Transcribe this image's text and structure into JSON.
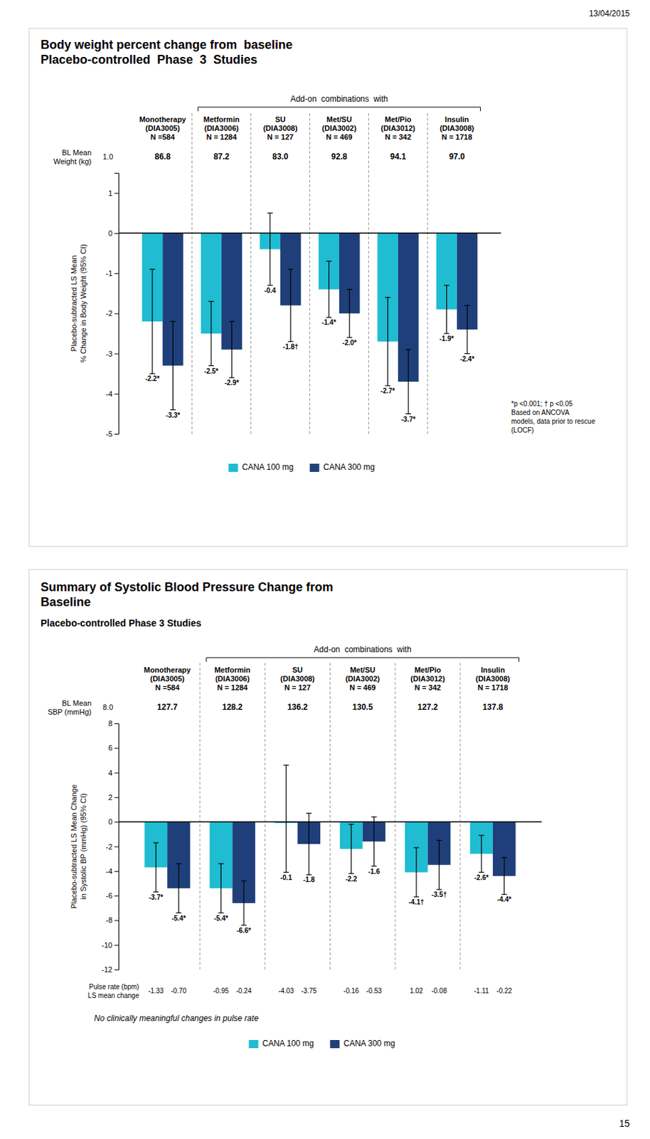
{
  "annotations": [
    "13/04/2015",
    "15"
  ],
  "chart_data": [
    {
      "type": "bar",
      "title": "Body weight percent change from  baseline\nPlacebo-controlled  Phase  3  Studies",
      "ylabel": "Placebo-subtracted LS Mean\n% Change in Body Weight (95% CI)",
      "categories": [
        "Monotherapy\n(DIA3005)\nN =584",
        "Metformin\n(DIA3006)\nN = 1284",
        "SU\n(DIA3008)\nN = 127",
        "Met/SU\n(DIA3002)\nN = 469",
        "Met/Pio\n(DIA3012)\nN = 342",
        "Insulin\n(DIA3008)\nN = 1718"
      ],
      "baseline_label": "BL Mean\nWeight (kg)",
      "baseline_values": [
        "86.8",
        "87.2",
        "83.0",
        "92.8",
        "94.1",
        "97.0"
      ],
      "annotations": [
        "Add-on  combinations  with",
        "*p <0.001; † p <0.05\nBased on ANCOVA\nmodels, data prior to rescue\n(LOCF)",
        "1.0"
      ],
      "series": [
        {
          "name": "CANA 100 mg",
          "color": "#1FBCD2",
          "values": [
            -2.2,
            -2.5,
            -0.4,
            -1.4,
            -2.7,
            -1.9
          ],
          "value_labels": [
            "-2.2*",
            "-2.5*",
            "-0.4",
            "-1.4*",
            "-2.7*",
            "-1.9*"
          ],
          "err_lo": [
            1.3,
            0.8,
            0.9,
            0.7,
            1.1,
            0.6
          ],
          "err_hi": [
            1.3,
            0.8,
            0.9,
            0.7,
            1.1,
            0.6
          ]
        },
        {
          "name": "CANA 300 mg",
          "color": "#1F3F7A",
          "values": [
            -3.3,
            -2.9,
            -1.8,
            -2.0,
            -3.7,
            -2.4
          ],
          "value_labels": [
            "-3.3*",
            "-2.9*",
            "-1.8†",
            "-2.0*",
            "-3.7*",
            "-2.4*"
          ],
          "err_lo": [
            1.1,
            0.7,
            0.9,
            0.6,
            0.8,
            0.6
          ],
          "err_hi": [
            1.1,
            0.7,
            0.9,
            0.6,
            0.8,
            0.6
          ]
        }
      ],
      "ylim": [
        -5,
        1.5
      ],
      "yticks": [
        1,
        0,
        -1,
        -2,
        -3,
        -4,
        -5
      ],
      "data_labels": true,
      "legend": "bottom",
      "grid": false
    },
    {
      "type": "bar",
      "title": "Summary of Systolic Blood Pressure Change from\nBaseline",
      "subtitle": "Placebo-controlled Phase 3 Studies",
      "ylabel": "Placebo-subtracted LS Mean Change\nin Systolic BP (mmHg) (95% CI)",
      "categories": [
        "Monotherapy\n(DIA3005)\nN =584",
        "Metformin\n(DIA3006)\nN = 1284",
        "SU\n(DIA3008)\nN = 127",
        "Met/SU\n(DIA3002)\nN = 469",
        "Met/Pio\n(DIA3012)\nN = 342",
        "Insulin\n(DIA3008)\nN = 1718"
      ],
      "baseline_label": "BL Mean\nSBP (mmHg)",
      "baseline_values": [
        "127.7",
        "128.2",
        "136.2",
        "130.5",
        "127.2",
        "137.8"
      ],
      "annotations": [
        "Add-on  combinations  with",
        "No clinically meaningful changes in pulse rate",
        "8.0"
      ],
      "pulse_label": "Pulse rate (bpm)\nLS mean change",
      "series": [
        {
          "name": "CANA 100 mg",
          "color": "#1FBCD2",
          "values": [
            -3.7,
            -5.4,
            -0.1,
            -2.2,
            -4.1,
            -2.6
          ],
          "value_labels": [
            "-3.7*",
            "-5.4*",
            "-0.1",
            "-2.2",
            "-4.1†",
            "-2.6*"
          ],
          "err_lo": [
            2.0,
            2.0,
            4.0,
            2.0,
            2.0,
            1.5
          ],
          "err_hi": [
            2.0,
            2.0,
            4.7,
            2.0,
            2.0,
            1.5
          ],
          "pulse_values": [
            "-1.33",
            "-0.95",
            "-4.03",
            "-0.16",
            "1.02",
            "-1.11"
          ]
        },
        {
          "name": "CANA 300 mg",
          "color": "#1F3F7A",
          "values": [
            -5.4,
            -6.6,
            -1.8,
            -1.6,
            -3.5,
            -4.4
          ],
          "value_labels": [
            "-5.4*",
            "-6.6*",
            "-1.8",
            "-1.6",
            "-3.5†",
            "-4.4*"
          ],
          "err_lo": [
            2.0,
            1.8,
            2.5,
            2.0,
            2.0,
            1.5
          ],
          "err_hi": [
            2.0,
            1.8,
            2.5,
            2.0,
            2.0,
            1.5
          ],
          "pulse_values": [
            "-0.70",
            "-0.24",
            "-3.75",
            "-0.53",
            "-0.08",
            "-0.22"
          ]
        }
      ],
      "ylim": [
        -12,
        8
      ],
      "yticks": [
        8,
        6,
        4,
        2,
        0,
        -2,
        -4,
        -6,
        -8,
        -10,
        -12
      ],
      "data_labels": true,
      "legend": "bottom",
      "grid": false
    }
  ]
}
